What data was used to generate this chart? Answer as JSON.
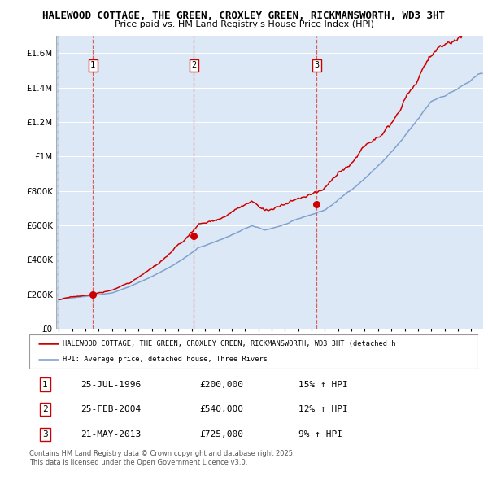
{
  "title1": "HALEWOOD COTTAGE, THE GREEN, CROXLEY GREEN, RICKMANSWORTH, WD3 3HT",
  "title2": "Price paid vs. HM Land Registry's House Price Index (HPI)",
  "legend_label_red": "HALEWOOD COTTAGE, THE GREEN, CROXLEY GREEN, RICKMANSWORTH, WD3 3HT (detached h",
  "legend_label_blue": "HPI: Average price, detached house, Three Rivers",
  "sale_dates": [
    "25-JUL-1996",
    "25-FEB-2004",
    "21-MAY-2013"
  ],
  "sale_prices": [
    200000,
    540000,
    725000
  ],
  "sale_hpi_pct": [
    "15% ↑ HPI",
    "12% ↑ HPI",
    "9% ↑ HPI"
  ],
  "sale_years": [
    1996.56,
    2004.15,
    2013.39
  ],
  "vline_color": "#dd4444",
  "red_line_color": "#cc0000",
  "blue_line_color": "#7799cc",
  "background_color": "#dce8f5",
  "footer": "Contains HM Land Registry data © Crown copyright and database right 2025.\nThis data is licensed under the Open Government Licence v3.0.",
  "ylim_max": 1700000,
  "xlim_start": 1993.8,
  "xlim_end": 2025.9,
  "yticks": [
    0,
    200000,
    400000,
    600000,
    800000,
    1000000,
    1200000,
    1400000,
    1600000
  ]
}
